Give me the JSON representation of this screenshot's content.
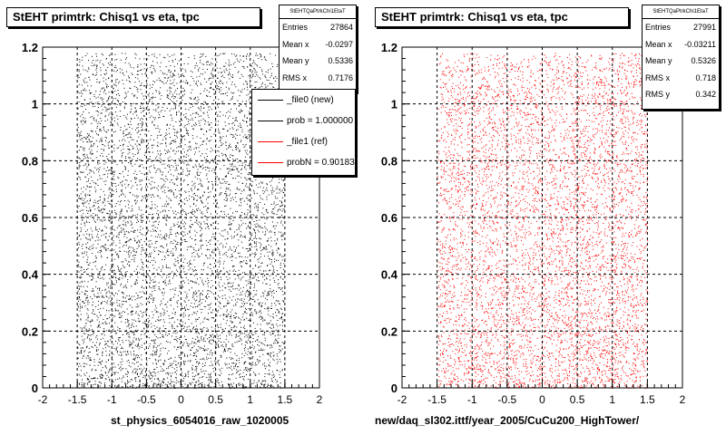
{
  "chart_data": [
    {
      "type": "scatter",
      "title": "StEHT primtrk: Chisq1 vs eta, tpc",
      "xlabel": "st_physics_6054016_raw_1020005",
      "ylabel": "",
      "xlim": [
        -2,
        2
      ],
      "ylim": [
        0,
        1.2
      ],
      "x_ticks": [
        "-2",
        "-1.5",
        "-1",
        "-0.5",
        "0",
        "0.5",
        "1",
        "1.5",
        "2"
      ],
      "y_ticks": [
        "0",
        "0.2",
        "0.4",
        "0.6",
        "0.8",
        "1",
        "1.2"
      ],
      "grid": true,
      "point_color": "#000000",
      "point_x_range": [
        -1.5,
        1.5
      ],
      "stats": {
        "name": "StEHTQaPtrkChi1EtaT",
        "rows": [
          {
            "label": "Entries",
            "value": "27864"
          },
          {
            "label": "Mean x",
            "value": "-0.0297"
          },
          {
            "label": "Mean y",
            "value": "0.5336"
          },
          {
            "label": "RMS x",
            "value": "0.7176"
          }
        ]
      },
      "legend": {
        "placement": "top-right",
        "entries": [
          {
            "label": "_file0 (new)",
            "color": "#000000"
          },
          {
            "label": "prob = 1.000000",
            "color": "#000000"
          },
          {
            "label": "_file1 (ref)",
            "color": "#ff0000"
          },
          {
            "label": "probN = 0.901837",
            "color": "#ff0000"
          }
        ]
      }
    },
    {
      "type": "scatter",
      "title": "StEHT primtrk: Chisq1 vs eta, tpc",
      "xlabel": "new/daq_sl302.ittf/year_2005/CuCu200_HighTower/",
      "ylabel": "",
      "xlim": [
        -2,
        2
      ],
      "ylim": [
        0,
        1.2
      ],
      "x_ticks": [
        "-2",
        "-1.5",
        "-1",
        "-0.5",
        "0",
        "0.5",
        "1",
        "1.5",
        "2"
      ],
      "y_ticks": [
        "0",
        "0.2",
        "0.4",
        "0.6",
        "0.8",
        "1",
        "1.2"
      ],
      "grid": true,
      "point_color": "#ff0000",
      "point_x_range": [
        -1.5,
        1.5
      ],
      "stats": {
        "name": "StEHTQaPtrkChi1EtaT",
        "rows": [
          {
            "label": "Entries",
            "value": "27991"
          },
          {
            "label": "Mean x",
            "value": "-0.03211"
          },
          {
            "label": "Mean y",
            "value": "0.5326"
          },
          {
            "label": "RMS x",
            "value": "0.718"
          },
          {
            "label": "RMS y",
            "value": "0.342"
          }
        ]
      }
    }
  ]
}
